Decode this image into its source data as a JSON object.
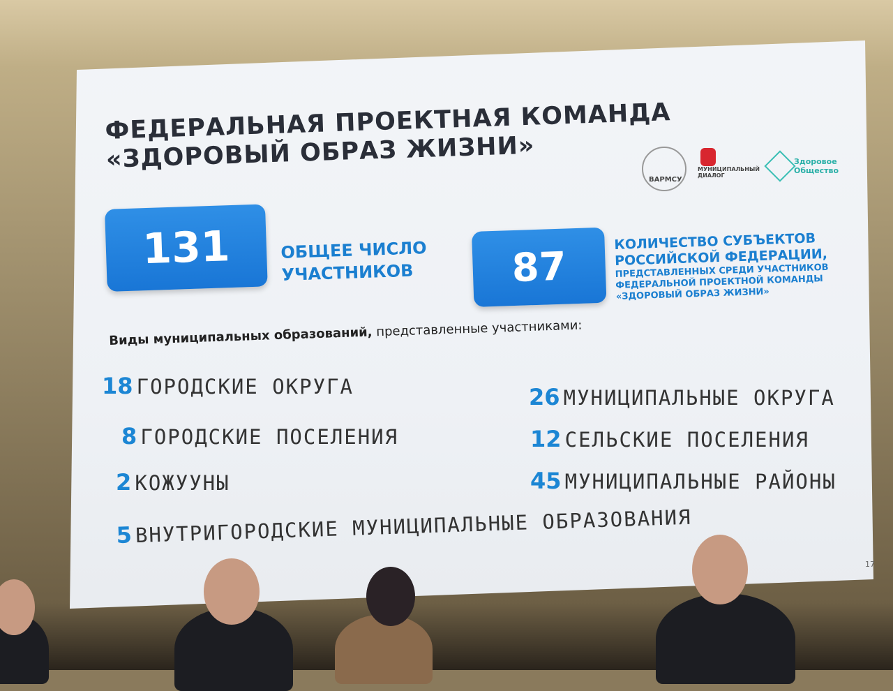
{
  "slide": {
    "title_line1": "ФЕДЕРАЛЬНАЯ ПРОЕКТНАЯ КОМАНДА",
    "title_line2": "«ЗДОРОВЫЙ ОБРАЗ ЖИЗНИ»",
    "logos": [
      {
        "text": "ВАРМСУ"
      },
      {
        "text": "МУНИЦИПАЛЬНЫЙ ДИАЛОГ"
      },
      {
        "text": "Здоровое Общество"
      }
    ],
    "stats": [
      {
        "value": "131",
        "label1": "ОБЩЕЕ ЧИСЛО",
        "label2": "УЧАСТНИКОВ"
      },
      {
        "value": "87",
        "label1": "КОЛИЧЕСТВО СУБЪЕКТОВ",
        "label2": "РОССИЙСКОЙ ФЕДЕРАЦИИ,",
        "sub1": "ПРЕДСТАВЛЕННЫХ СРЕДИ УЧАСТНИКОВ",
        "sub2": "ФЕДЕРАЛЬНОЙ ПРОЕКТНОЙ КОМАНДЫ",
        "sub3": "«ЗДОРОВЫЙ ОБРАЗ ЖИЗНИ»"
      }
    ],
    "subtitle_bold": "Виды муниципальных образований,",
    "subtitle_rest": " представленные участниками:",
    "types": [
      {
        "n": "18",
        "label": "ГОРОДСКИЕ ОКРУГА"
      },
      {
        "n": "26",
        "label": "МУНИЦИПАЛЬНЫЕ ОКРУГА"
      },
      {
        "n": "8",
        "label": "ГОРОДСКИЕ ПОСЕЛЕНИЯ"
      },
      {
        "n": "12",
        "label": "СЕЛЬСКИЕ ПОСЕЛЕНИЯ"
      },
      {
        "n": "2",
        "label": "КОЖУУНЫ"
      },
      {
        "n": "45",
        "label": "МУНИЦИПАЛЬНЫЕ РАЙОНЫ"
      },
      {
        "n": "5",
        "label": "ВНУТРИГОРОДСКИЕ МУНИЦИПАЛЬНЫЕ ОБРАЗОВАНИЯ"
      }
    ],
    "page_number": "17"
  },
  "colors": {
    "accent": "#1c86d4",
    "box": "#1976d6",
    "title": "#2a2e38"
  }
}
